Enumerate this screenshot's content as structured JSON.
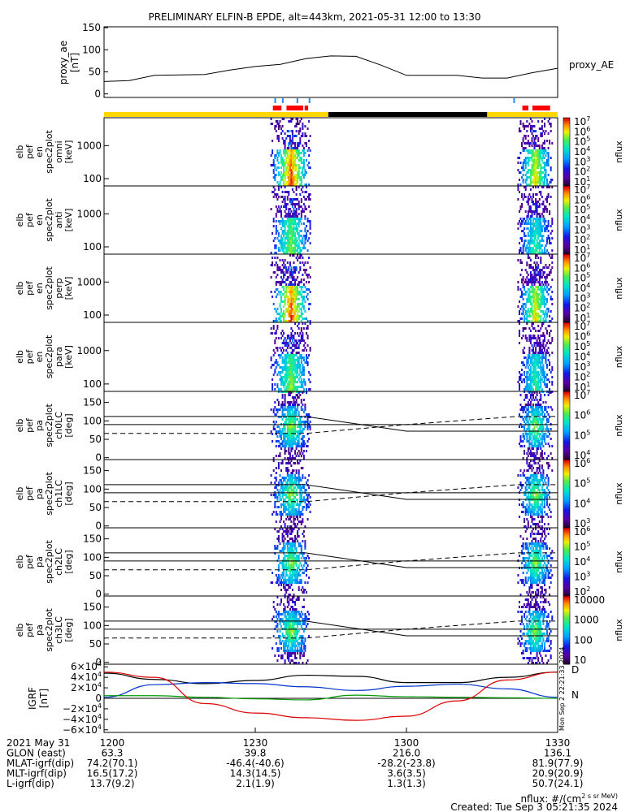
{
  "title": "PRELIMINARY ELFIN-B EPDE, alt=443km, 2021-05-31 12:00 to 13:30",
  "x_ticks": [
    "1200",
    "1230",
    "1300",
    "1330"
  ],
  "footer_rows": [
    {
      "label": "2021 May 31",
      "vals": [
        "1200",
        "1230",
        "1300",
        "1330"
      ]
    },
    {
      "label": "GLON (east)",
      "vals": [
        "63.3",
        "39.8",
        "216.0",
        "136.1"
      ]
    },
    {
      "label": "MLAT-igrf(dip)",
      "vals": [
        "74.2(70.1)",
        "-46.4(-40.6)",
        "-28.2(-23.8)",
        "81.9(77.9)"
      ]
    },
    {
      "label": "MLT-igrf(dip)",
      "vals": [
        "16.5(17.2)",
        "14.3(14.5)",
        "3.6(3.5)",
        "20.9(20.9)"
      ]
    },
    {
      "label": "L-igrf(dip)",
      "vals": [
        "13.7(9.2)",
        "2.1(1.9)",
        "1.3(1.3)",
        "50.7(24.1)"
      ]
    }
  ],
  "note_units": "nflux: #/(cm^2 s sr MeV)",
  "note_created": "Created: Tue Sep  3 05:21:35 2024",
  "side_stamp": "Mon Sep  2 22:21:33 2024",
  "cbar_label": "nflux",
  "colors": {
    "yellow": "#ffd700",
    "black": "#000000",
    "red": "#ff0000",
    "blue": "#2288ff",
    "bx": "#000000",
    "by": "#0033cc",
    "bz": "#009900",
    "btot": "#dd0000"
  },
  "panels": [
    {
      "id": "ae",
      "ylabel": [
        "proxy_ae",
        "[nT]"
      ],
      "legend": "proxy_AE",
      "yticks": [
        "150",
        "100",
        "50",
        "0"
      ]
    },
    {
      "id": "omni",
      "ylabel": [
        "elb",
        "pef",
        "en",
        "spec2plot",
        "omni",
        "[keV]"
      ],
      "yticks": [
        "1000",
        "100"
      ],
      "cbar": [
        "10^7",
        "10^6",
        "10^5",
        "10^4",
        "10^3",
        "10^2",
        "10^1"
      ]
    },
    {
      "id": "anti",
      "ylabel": [
        "elb",
        "pef",
        "en",
        "spec2plot",
        "anti",
        "[keV]"
      ],
      "yticks": [
        "1000",
        "100"
      ],
      "cbar": [
        "10^7",
        "10^6",
        "10^5",
        "10^4",
        "10^3",
        "10^2",
        "10^1"
      ]
    },
    {
      "id": "perp",
      "ylabel": [
        "elb",
        "pef",
        "en",
        "spec2plot",
        "perp",
        "[keV]"
      ],
      "yticks": [
        "1000",
        "100"
      ],
      "cbar": [
        "10^7",
        "10^6",
        "10^5",
        "10^4",
        "10^3",
        "10^2",
        "10^1"
      ]
    },
    {
      "id": "para",
      "ylabel": [
        "elb",
        "pef",
        "en",
        "spec2plot",
        "para",
        "[keV]"
      ],
      "yticks": [
        "1000",
        "100"
      ],
      "cbar": [
        "10^7",
        "10^6",
        "10^5",
        "10^4",
        "10^3",
        "10^2",
        "10^1"
      ]
    },
    {
      "id": "ch0",
      "ylabel": [
        "elb",
        "pef",
        "pa",
        "spec2plot",
        "ch0LC",
        "[deg]"
      ],
      "yticks": [
        "150",
        "100",
        "50",
        "0"
      ],
      "cbar": [
        "10^7",
        "10^6",
        "10^5",
        "10^4"
      ]
    },
    {
      "id": "ch1",
      "ylabel": [
        "elb",
        "pef",
        "pa",
        "spec2plot",
        "ch1LC",
        "[deg]"
      ],
      "yticks": [
        "150",
        "100",
        "50",
        "0"
      ],
      "cbar": [
        "10^6",
        "10^5",
        "10^4",
        "10^3"
      ]
    },
    {
      "id": "ch2",
      "ylabel": [
        "elb",
        "pef",
        "pa",
        "spec2plot",
        "ch2LC",
        "[deg]"
      ],
      "yticks": [
        "150",
        "100",
        "50",
        "0"
      ],
      "cbar": [
        "10^6",
        "10^5",
        "10^4",
        "10^3",
        "10^2"
      ]
    },
    {
      "id": "ch3",
      "ylabel": [
        "elb",
        "pef",
        "pa",
        "spec2plot",
        "ch3LC",
        "[deg]"
      ],
      "yticks": [
        "150",
        "100",
        "50",
        "0"
      ],
      "cbar": [
        "10000",
        "1000",
        "100",
        "10"
      ]
    },
    {
      "id": "igrf",
      "ylabel": [
        "IGRF",
        "[nT]"
      ],
      "yticks": [
        "6×10^4",
        "4×10^4",
        "2×10^4",
        "0",
        "−2×10^4",
        "−4×10^4",
        "−6×10^4"
      ],
      "legend_letters": [
        "N",
        "D"
      ]
    }
  ],
  "chart_data": [
    {
      "type": "line",
      "title": "PRELIMINARY ELFIN-B EPDE, alt=443km, 2021-05-31 12:00 to 13:30",
      "ylabel": "proxy_ae [nT]",
      "ylim": [
        0,
        150
      ],
      "x": [
        "12:00",
        "12:05",
        "12:10",
        "12:15",
        "12:20",
        "12:25",
        "12:30",
        "12:35",
        "12:40",
        "12:45",
        "12:50",
        "12:55",
        "13:00",
        "13:05",
        "13:10",
        "13:15",
        "13:20",
        "13:25",
        "13:30"
      ],
      "series": [
        {
          "name": "proxy_AE",
          "values": [
            28,
            30,
            42,
            43,
            44,
            54,
            62,
            67,
            80,
            86,
            85,
            65,
            42,
            42,
            42,
            36,
            36,
            48,
            58
          ]
        }
      ]
    },
    {
      "type": "heatmap",
      "ylabel": "elb pef en spec2plot omni [keV]",
      "ylog": true,
      "ylim": [
        60,
        7000
      ],
      "clabel": "nflux",
      "crange": [
        "10^1",
        "10^7"
      ]
    },
    {
      "type": "heatmap",
      "ylabel": "elb pef en spec2plot anti [keV]",
      "ylog": true,
      "ylim": [
        60,
        7000
      ],
      "clabel": "nflux",
      "crange": [
        "10^1",
        "10^7"
      ]
    },
    {
      "type": "heatmap",
      "ylabel": "elb pef en spec2plot perp [keV]",
      "ylog": true,
      "ylim": [
        60,
        7000
      ],
      "clabel": "nflux",
      "crange": [
        "10^1",
        "10^7"
      ]
    },
    {
      "type": "heatmap",
      "ylabel": "elb pef en spec2plot para [keV]",
      "ylog": true,
      "ylim": [
        60,
        7000
      ],
      "clabel": "nflux",
      "crange": [
        "10^1",
        "10^7"
      ]
    },
    {
      "type": "heatmap",
      "ylabel": "elb pef pa spec2plot ch0LC [deg]",
      "ylim": [
        0,
        180
      ],
      "clabel": "nflux",
      "crange": [
        "10^3",
        "10^7"
      ]
    },
    {
      "type": "heatmap",
      "ylabel": "elb pef pa spec2plot ch1LC [deg]",
      "ylim": [
        0,
        180
      ],
      "clabel": "nflux",
      "crange": [
        "10^3",
        "10^6"
      ]
    },
    {
      "type": "heatmap",
      "ylabel": "elb pef pa spec2plot ch2LC [deg]",
      "ylim": [
        0,
        180
      ],
      "clabel": "nflux",
      "crange": [
        "10^2",
        "10^6"
      ]
    },
    {
      "type": "heatmap",
      "ylabel": "elb pef pa spec2plot ch3LC [deg]",
      "ylim": [
        0,
        180
      ],
      "clabel": "nflux",
      "crange": [
        "10",
        "10000"
      ]
    },
    {
      "type": "line",
      "ylabel": "IGRF [nT]",
      "ylim": [
        -60000,
        60000
      ],
      "x": [
        "12:00",
        "12:10",
        "12:20",
        "12:30",
        "12:40",
        "12:50",
        "13:00",
        "13:10",
        "13:20",
        "13:30"
      ],
      "series": [
        {
          "color": "#000000",
          "values": [
            48000,
            36000,
            28000,
            34000,
            44000,
            42000,
            30000,
            30000,
            40000,
            50000
          ]
        },
        {
          "color": "#0033cc",
          "values": [
            2000,
            26000,
            30000,
            28000,
            22000,
            15000,
            23000,
            27000,
            18000,
            2000
          ]
        },
        {
          "color": "#009900",
          "values": [
            5000,
            5000,
            2000,
            -1000,
            -3000,
            6000,
            3000,
            2000,
            1000,
            0
          ]
        },
        {
          "color": "#dd0000",
          "values": [
            50000,
            40000,
            -10000,
            -28000,
            -37000,
            -42000,
            -34000,
            -5000,
            35000,
            50000
          ]
        }
      ]
    }
  ]
}
